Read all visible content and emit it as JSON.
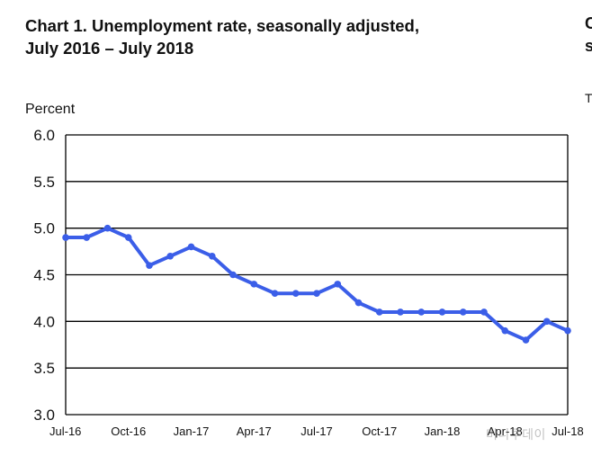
{
  "title_line1": "Chart 1. Unemployment rate, seasonally adjusted,",
  "title_line2": "July 2016 – July 2018",
  "edge_fragments": [
    "C",
    "s",
    "T"
  ],
  "watermark": "머니투데이",
  "chart_data": {
    "type": "line",
    "title": "Chart 1. Unemployment rate, seasonally adjusted, July 2016 – July 2018",
    "ylabel": "Percent",
    "xlabel": "",
    "ylim": [
      3.0,
      6.0
    ],
    "yticks": [
      "3.0",
      "3.5",
      "4.0",
      "4.5",
      "5.0",
      "5.5",
      "6.0"
    ],
    "xticks": [
      "Jul-16",
      "Oct-16",
      "Jan-17",
      "Apr-17",
      "Jul-17",
      "Oct-17",
      "Jan-18",
      "Apr-18",
      "Jul-18"
    ],
    "x": [
      "Jul-16",
      "Aug-16",
      "Sep-16",
      "Oct-16",
      "Nov-16",
      "Dec-16",
      "Jan-17",
      "Feb-17",
      "Mar-17",
      "Apr-17",
      "May-17",
      "Jun-17",
      "Jul-17",
      "Aug-17",
      "Sep-17",
      "Oct-17",
      "Nov-17",
      "Dec-17",
      "Jan-18",
      "Feb-18",
      "Mar-18",
      "Apr-18",
      "May-18",
      "Jun-18",
      "Jul-18"
    ],
    "series": [
      {
        "values": [
          4.9,
          4.9,
          5.0,
          4.9,
          4.6,
          4.7,
          4.8,
          4.7,
          4.5,
          4.4,
          4.3,
          4.3,
          4.3,
          4.4,
          4.2,
          4.1,
          4.1,
          4.1,
          4.1,
          4.1,
          4.1,
          3.9,
          3.8,
          4.0,
          3.9
        ],
        "color": "#3b5ee8"
      }
    ],
    "grid": true,
    "legend": "none"
  }
}
